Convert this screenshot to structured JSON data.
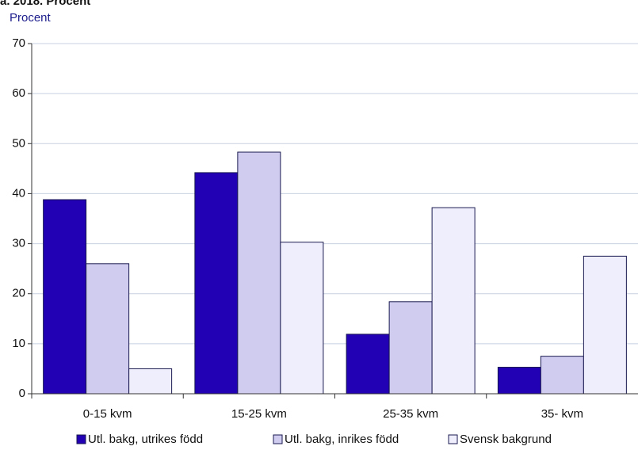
{
  "chart_data": {
    "type": "bar",
    "title": "a. 2018. Procent",
    "y_label": "Procent",
    "categories": [
      "0-15 kvm",
      "15-25 kvm",
      "25-35 kvm",
      "35- kvm"
    ],
    "series": [
      {
        "name": "Utl. bakg, utrikes född",
        "color": "#2200b4",
        "values": [
          38.8,
          44.2,
          11.9,
          5.3
        ]
      },
      {
        "name": "Utl. bakg, inrikes född",
        "color": "#d0ccf0",
        "values": [
          26,
          48.3,
          18.4,
          7.5
        ]
      },
      {
        "name": "Svensk bakgrund",
        "color": "#efeefc",
        "values": [
          5,
          30.3,
          37.2,
          27.5
        ]
      }
    ],
    "ylim": [
      0,
      70
    ],
    "yticks": [
      0,
      10,
      20,
      30,
      40,
      50,
      60,
      70
    ],
    "grid": true,
    "legend": "bottom"
  }
}
